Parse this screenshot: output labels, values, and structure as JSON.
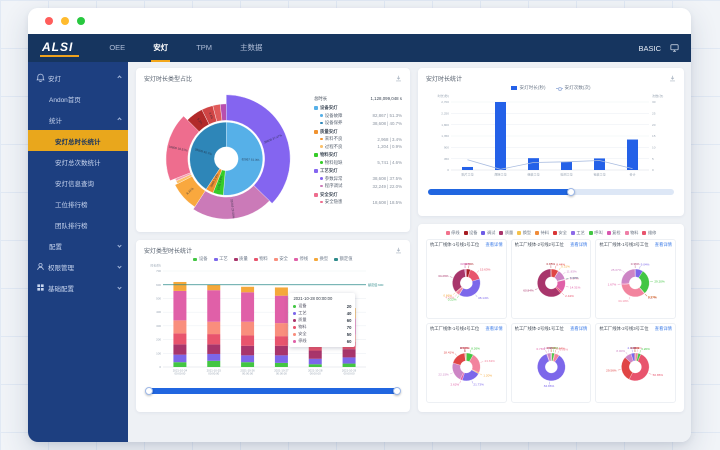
{
  "window": {
    "traffic_lights": [
      "#ff5d5b",
      "#ffbb2e",
      "#28c83f"
    ]
  },
  "header": {
    "logo": "ALSI",
    "tabs": [
      {
        "label": "OEE",
        "active": false
      },
      {
        "label": "安灯",
        "active": true
      },
      {
        "label": "TPM",
        "active": false
      },
      {
        "label": "主数据",
        "active": false
      }
    ],
    "right_label": "BASIC"
  },
  "sidebar": {
    "items": [
      {
        "label": "安灯",
        "icon": "alarm-icon",
        "chevron": "up",
        "level": 0,
        "active": false
      },
      {
        "label": "Andon首页",
        "level": 1,
        "active": false
      },
      {
        "label": "统计",
        "chevron": "up",
        "level": 1,
        "active": false
      },
      {
        "label": "安灯总时长统计",
        "level": 2,
        "active": true
      },
      {
        "label": "安灯总次数统计",
        "level": 2,
        "active": false
      },
      {
        "label": "安灯信息查询",
        "level": 2,
        "active": false
      },
      {
        "label": "工位排行榜",
        "level": 2,
        "active": false
      },
      {
        "label": "团队排行榜",
        "level": 2,
        "active": false
      },
      {
        "label": "配置",
        "chevron": "down",
        "level": 1,
        "active": false
      },
      {
        "label": "权限管理",
        "icon": "user-icon",
        "chevron": "down",
        "level": 0,
        "active": false
      },
      {
        "label": "基础配置",
        "icon": "grid-icon",
        "chevron": "down",
        "level": 0,
        "active": false
      }
    ]
  },
  "panels": {
    "p1": {
      "title": "安灯时长类型占比",
      "legend": {
        "header_label": "总时长",
        "header_value": "1,128,099,048 s",
        "groups": [
          {
            "color": "#56b0e8",
            "name": "设备安灯",
            "items": [
              {
                "color": "#56b0e8",
                "name": "设备故障",
                "value": "82,867 | 51.3%"
              },
              {
                "color": "#2e86b8",
                "name": "设备保养",
                "value": "38,608 | 40.7%"
              }
            ]
          },
          {
            "color": "#f0922f",
            "name": "质量安灯",
            "items": [
              {
                "color": "#f0922f",
                "name": "来料不良",
                "value": "2,968 | 3.4%"
              },
              {
                "color": "#fbc06a",
                "name": "过程不良",
                "value": "1,204 | 0.9%"
              }
            ]
          },
          {
            "color": "#35cc28",
            "name": "物料安灯",
            "items": [
              {
                "color": "#35cc28",
                "name": "物料短缺",
                "value": "5,741 | 4.6%"
              }
            ]
          },
          {
            "color": "#8465f0",
            "name": "工艺安灯",
            "items": [
              {
                "color": "#8465f0",
                "name": "参数异常",
                "value": "38,608 | 37.5%"
              },
              {
                "color": "#cb7ab8",
                "name": "程序调试",
                "value": "32,249 | 22.0%"
              }
            ]
          },
          {
            "color": "#ee6d8e",
            "name": "安全安灯",
            "items": [
              {
                "color": "#ee6d8e",
                "name": "安全隐患",
                "value": "18,608 | 18.5%"
              }
            ]
          }
        ]
      },
      "chart_data": {
        "type": "sunburst",
        "inner": [
          {
            "label": "82867 51.3%",
            "value": 51.3,
            "color": "#56b0e8"
          },
          {
            "label": "5741 4.6%",
            "value": 4.6,
            "color": "#35cc28"
          },
          {
            "label": "2968 3.4%",
            "value": 3.4,
            "color": "#f0922f"
          },
          {
            "label": "38608 40.7%",
            "value": 40.7,
            "color": "#2e86b8"
          }
        ],
        "outer": [
          {
            "label": "38608 37.47%",
            "value": 37.47,
            "color": "#8465f0"
          },
          {
            "label": "32249 22.04%",
            "value": 22.04,
            "color": "#cb7ab8"
          },
          {
            "label": "8.31%",
            "value": 8.31,
            "color": "#f9a83e"
          },
          {
            "label": "",
            "value": 0.9,
            "color": "#fbc06a"
          },
          {
            "label": "",
            "value": 0.7,
            "color": "#f6a0b0"
          },
          {
            "label": "18608 18.51%",
            "value": 18.51,
            "color": "#ee6d8e"
          },
          {
            "label": "5.2%",
            "value": 5.2,
            "color": "#b22a2a"
          },
          {
            "label": "3.4%",
            "value": 3.4,
            "color": "#d04545"
          },
          {
            "label": "2.2%",
            "value": 2.2,
            "color": "#e05a5a"
          },
          {
            "label": "",
            "value": 1.77,
            "color": "#b84fae"
          }
        ]
      }
    },
    "p2": {
      "title": "安灯时长统计",
      "chart_data": {
        "type": "bar-line",
        "unit_left": "时长(秒)",
        "unit_right": "次数(次)",
        "legend": [
          {
            "label": "安灯时长(秒)",
            "type": "bar",
            "color": "#2461e8"
          },
          {
            "label": "安灯次数(次)",
            "type": "line",
            "color": "#a9bce0"
          }
        ],
        "categories": [
          "贴片工位",
          "焊接工位",
          "组装工位",
          "检测工位",
          "包装工位",
          "合计"
        ],
        "bars": [
          120,
          2700,
          470,
          330,
          460,
          1210
        ],
        "line": [
          4.5,
          0.3,
          3.3,
          3.6,
          4.2,
          0.6
        ],
        "ylim": [
          0,
          2700
        ],
        "yticks": [
          0,
          450,
          900,
          1350,
          1800,
          2250,
          2700
        ],
        "y2lim": [
          0,
          30
        ],
        "y2ticks": [
          0,
          5,
          10,
          15,
          20,
          25,
          30
        ],
        "zoom_filled_pct": 58
      }
    },
    "p3": {
      "title": "安灯类型时长统计",
      "chart_data": {
        "type": "stacked-bar",
        "unit_left": "时长(秒)",
        "categories": [
          "2021-10-24",
          "2021-10-25",
          "2021-10-26",
          "2021-10-27",
          "2021-10-28",
          "2021-10-29"
        ],
        "categories_line2": "00:00:00",
        "series": [
          {
            "name": "设备",
            "color": "#43c643",
            "values": [
              35,
              45,
              35,
              30,
              20,
              25
            ]
          },
          {
            "name": "工艺",
            "color": "#7c67ea",
            "values": [
              55,
              50,
              50,
              55,
              40,
              45
            ]
          },
          {
            "name": "质量",
            "color": "#a8356b",
            "values": [
              75,
              70,
              70,
              70,
              60,
              60
            ]
          },
          {
            "name": "物料",
            "color": "#e8546d",
            "values": [
              80,
              75,
              75,
              70,
              70,
              55
            ]
          },
          {
            "name": "安全",
            "color": "#f98e7d",
            "values": [
              95,
              90,
              100,
              95,
              50,
              50
            ]
          },
          {
            "name": "停线",
            "color": "#e060a8",
            "values": [
              215,
              230,
              215,
              200,
              60,
              120
            ]
          },
          {
            "name": "换型",
            "color": "#f5a83a",
            "values": [
              65,
              40,
              40,
              60,
              0,
              75
            ]
          }
        ],
        "ylim": [
          0,
          700
        ],
        "yticks": [
          0,
          100,
          200,
          300,
          400,
          500,
          600,
          700
        ],
        "ref_line": {
          "value": 600,
          "label": "额定值:600",
          "color": "#2e8b8b"
        }
      },
      "tooltip": {
        "title": "2021-10-28 00:00:00",
        "rows": [
          {
            "name": "设备",
            "color": "#43c643",
            "value": "20"
          },
          {
            "name": "工艺",
            "color": "#7c67ea",
            "value": "40"
          },
          {
            "name": "质量",
            "color": "#a8356b",
            "value": "60"
          },
          {
            "name": "物料",
            "color": "#e8546d",
            "value": "70"
          },
          {
            "name": "安全",
            "color": "#f98e7d",
            "value": "50"
          },
          {
            "name": "停线",
            "color": "#e060a8",
            "value": "60"
          }
        ]
      }
    },
    "p4": {
      "legend": [
        {
          "label": "停线",
          "color": "#f2728c"
        },
        {
          "label": "设备",
          "color": "#a61b22"
        },
        {
          "label": "调试",
          "color": "#6e5ce6"
        },
        {
          "label": "质量",
          "color": "#a8356b"
        },
        {
          "label": "换型",
          "color": "#f5c24a"
        },
        {
          "label": "待料",
          "color": "#f08c3a"
        },
        {
          "label": "安全",
          "color": "#d93636"
        },
        {
          "label": "工艺",
          "color": "#8d6ae8"
        },
        {
          "label": "呼叫",
          "color": "#43c643"
        },
        {
          "label": "复检",
          "color": "#d957b0"
        },
        {
          "label": "物料",
          "color": "#ef7fa7"
        },
        {
          "label": "维修",
          "color": "#e8546d"
        }
      ],
      "link_label": "查看详情",
      "cards": [
        {
          "title": "杭工厂线体-1号线1号工位",
          "segments": [
            {
              "pct": 4.79,
              "color": "#a61b22"
            },
            {
              "pct": 15.63,
              "color": "#e8546d"
            },
            {
              "pct": 38.14,
              "color": "#7c67ea"
            },
            {
              "pct": 0.22,
              "color": "#43c643"
            },
            {
              "pct": 4.35,
              "color": "#f2849e"
            },
            {
              "pct": 0.66,
              "color": "#f5a83a"
            },
            {
              "pct": 34.26,
              "color": "#a8356b"
            },
            {
              "pct": 0.76,
              "color": "#cd85c5"
            },
            {
              "pct": 1.19,
              "color": "#e060a8"
            }
          ]
        },
        {
          "title": "杭工厂线体-2号线2号工位",
          "segments": [
            {
              "pct": 8.44,
              "color": "#e04545"
            },
            {
              "pct": 0.31,
              "color": "#f5a83a"
            },
            {
              "pct": 11.83,
              "color": "#cd85c5"
            },
            {
              "pct": 0.32,
              "color": "#43c643"
            },
            {
              "pct": 0.29,
              "color": "#7c67ea"
            },
            {
              "pct": 0.37,
              "color": "#f2849e"
            },
            {
              "pct": 14.31,
              "color": "#e060a8"
            },
            {
              "pct": 2.44,
              "color": "#e8546d"
            },
            {
              "pct": 60.84,
              "color": "#a8356b"
            },
            {
              "pct": 0.85,
              "color": "#a61b22"
            }
          ]
        },
        {
          "title": "杭工厂线体-1号线3号工位",
          "segments": [
            {
              "pct": 9.04,
              "color": "#7c67ea"
            },
            {
              "pct": 29.2,
              "color": "#43c643"
            },
            {
              "pct": 0.21,
              "color": "#f5a83a"
            },
            {
              "pct": 0.27,
              "color": "#a61b22"
            },
            {
              "pct": 34.18,
              "color": "#f2849e"
            },
            {
              "pct": 1.67,
              "color": "#e060a8"
            },
            {
              "pct": 25.07,
              "color": "#cd85c5"
            },
            {
              "pct": 0.36,
              "color": "#a8356b"
            }
          ]
        },
        {
          "title": "杭工厂线体-1号线4号工位",
          "segments": [
            {
              "pct": 8.26,
              "color": "#43c643"
            },
            {
              "pct": 23.63,
              "color": "#f2849e"
            },
            {
              "pct": 1.2,
              "color": "#f5a83a"
            },
            {
              "pct": 21.73,
              "color": "#7c67ea"
            },
            {
              "pct": 2.62,
              "color": "#e060a8"
            },
            {
              "pct": 22.15,
              "color": "#cd85c5"
            },
            {
              "pct": 18.41,
              "color": "#e04545"
            },
            {
              "pct": 0.52,
              "color": "#a61b22"
            },
            {
              "pct": 0.32,
              "color": "#a8356b"
            },
            {
              "pct": 1.16,
              "color": "#f98e7d"
            }
          ]
        },
        {
          "title": "杭工厂线体-2号线1号工位",
          "segments": [
            {
              "pct": 0.73,
              "color": "#f5a83a"
            },
            {
              "pct": 2.93,
              "color": "#43c643"
            },
            {
              "pct": 0.84,
              "color": "#e04545"
            },
            {
              "pct": 5.02,
              "color": "#f2849e"
            },
            {
              "pct": 84.86,
              "color": "#7c67ea"
            },
            {
              "pct": 0.76,
              "color": "#e060a8"
            },
            {
              "pct": 4.25,
              "color": "#cd85c5"
            },
            {
              "pct": 0.61,
              "color": "#a8356b"
            }
          ]
        },
        {
          "title": "杭工厂线体-2号线3号工位",
          "segments": [
            {
              "pct": 0.4,
              "color": "#f5a83a"
            },
            {
              "pct": 2.93,
              "color": "#f2849e"
            },
            {
              "pct": 3.2,
              "color": "#43c643"
            },
            {
              "pct": 50.85,
              "color": "#e8546d"
            },
            {
              "pct": 29.56,
              "color": "#e04545"
            },
            {
              "pct": 8.0,
              "color": "#cd85c5"
            },
            {
              "pct": 4.1,
              "color": "#7c67ea"
            },
            {
              "pct": 0.96,
              "color": "#a61b22"
            }
          ]
        }
      ]
    }
  }
}
